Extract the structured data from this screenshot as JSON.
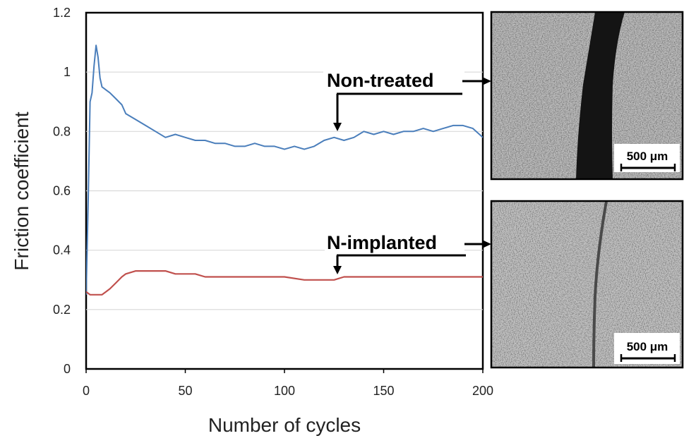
{
  "chart_data": {
    "type": "line",
    "title": "",
    "xlabel": "Number of cycles",
    "ylabel": "Friction coefficient",
    "xlim": [
      0,
      200
    ],
    "ylim": [
      0,
      1.2
    ],
    "x_ticks": [
      "0",
      "50",
      "100",
      "150",
      "200"
    ],
    "y_ticks": [
      "0",
      "0.2",
      "0.4",
      "0.6",
      "0.8",
      "1",
      "1.2"
    ],
    "grid": "horizontal",
    "series": [
      {
        "color": "#4a7ebb",
        "x": [
          0,
          1,
          2,
          3,
          4,
          5,
          6,
          7,
          8,
          10,
          12,
          15,
          18,
          20,
          25,
          30,
          35,
          40,
          45,
          50,
          55,
          60,
          65,
          70,
          75,
          80,
          85,
          90,
          95,
          100,
          105,
          110,
          115,
          120,
          125,
          130,
          135,
          140,
          145,
          150,
          155,
          160,
          165,
          170,
          175,
          180,
          185,
          190,
          195,
          200
        ],
        "values": [
          0.25,
          0.55,
          0.9,
          0.93,
          1.02,
          1.09,
          1.05,
          0.98,
          0.95,
          0.94,
          0.93,
          0.91,
          0.89,
          0.86,
          0.84,
          0.82,
          0.8,
          0.78,
          0.79,
          0.78,
          0.77,
          0.77,
          0.76,
          0.76,
          0.75,
          0.75,
          0.76,
          0.75,
          0.75,
          0.74,
          0.75,
          0.74,
          0.75,
          0.77,
          0.78,
          0.77,
          0.78,
          0.8,
          0.79,
          0.8,
          0.79,
          0.8,
          0.8,
          0.81,
          0.8,
          0.81,
          0.82,
          0.82,
          0.81,
          0.78
        ]
      },
      {
        "color": "#c0504d",
        "x": [
          0,
          2,
          4,
          6,
          8,
          10,
          12,
          15,
          18,
          20,
          25,
          30,
          35,
          40,
          45,
          50,
          55,
          60,
          70,
          80,
          90,
          100,
          110,
          115,
          120,
          125,
          130,
          140,
          150,
          160,
          170,
          180,
          190,
          200
        ],
        "values": [
          0.26,
          0.25,
          0.25,
          0.25,
          0.25,
          0.26,
          0.27,
          0.29,
          0.31,
          0.32,
          0.33,
          0.33,
          0.33,
          0.33,
          0.32,
          0.32,
          0.32,
          0.31,
          0.31,
          0.31,
          0.31,
          0.31,
          0.3,
          0.3,
          0.3,
          0.3,
          0.31,
          0.31,
          0.31,
          0.31,
          0.31,
          0.31,
          0.31,
          0.31
        ]
      }
    ],
    "annotations": [
      {
        "text": "Non-treated",
        "arrow_x": 127,
        "arrow_y": 0.79
      },
      {
        "text": "N-implanted",
        "arrow_x": 127,
        "arrow_y": 0.31
      }
    ]
  },
  "micrographs": [
    {
      "scale_bar": "500 μm",
      "track": "wide-dark"
    },
    {
      "scale_bar": "500 μm",
      "track": "thin"
    }
  ]
}
